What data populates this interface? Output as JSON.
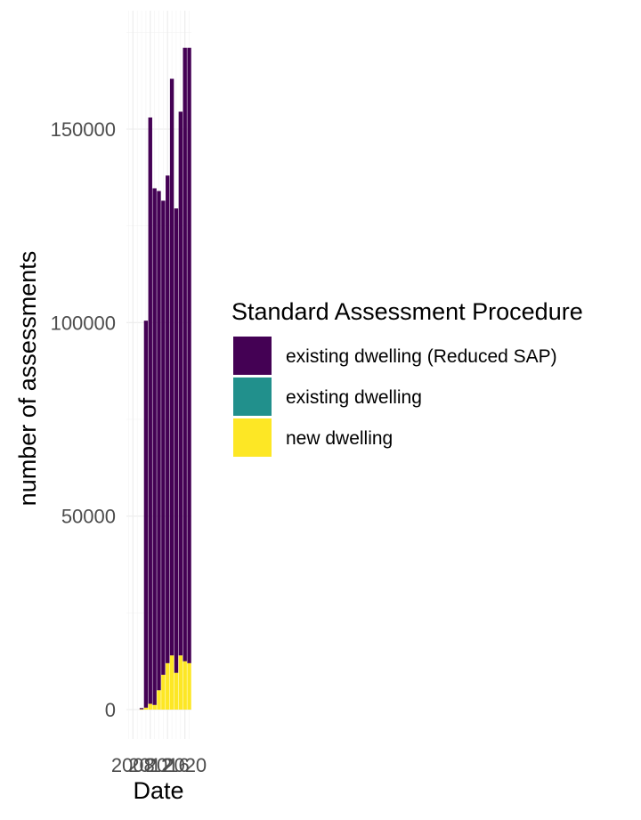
{
  "chart_data": {
    "type": "bar",
    "stacked": true,
    "title": "",
    "xlabel": "Date",
    "ylabel": "number of assessments",
    "ylim": [
      0,
      175000
    ],
    "y_ticks": [
      0,
      50000,
      100000,
      150000
    ],
    "y_tick_labels": [
      "0",
      "50000",
      "100000",
      "150000"
    ],
    "x_tick_labels": [
      "2008",
      "2012",
      "2016",
      "2020"
    ],
    "xlim": [
      2006.5,
      2021.5
    ],
    "grid": true,
    "legend": {
      "title": "Standard Assessment Procedure",
      "position": "right"
    },
    "x": [
      2008,
      2009,
      2010,
      2011,
      2012,
      2013,
      2014,
      2015,
      2016,
      2017,
      2018,
      2019,
      2020,
      2021
    ],
    "series": [
      {
        "name": "new dwelling",
        "color": "#FDE725",
        "values": [
          0,
          0,
          100,
          500,
          1500,
          1200,
          5000,
          9000,
          12000,
          14000,
          9500,
          14000,
          12500,
          12000
        ]
      },
      {
        "name": "existing dwelling",
        "color": "#21908C",
        "values": [
          0,
          0,
          0,
          0,
          0,
          0,
          0,
          0,
          0,
          0,
          0,
          0,
          0,
          0
        ]
      },
      {
        "name": "existing dwelling (Reduced SAP)",
        "color": "#440154",
        "values": [
          0,
          0,
          300,
          100000,
          151500,
          133500,
          129000,
          122500,
          126000,
          149000,
          120000,
          140500,
          158500,
          159000
        ]
      }
    ],
    "legend_order": [
      "existing dwelling (Reduced SAP)",
      "existing dwelling",
      "new dwelling"
    ]
  }
}
